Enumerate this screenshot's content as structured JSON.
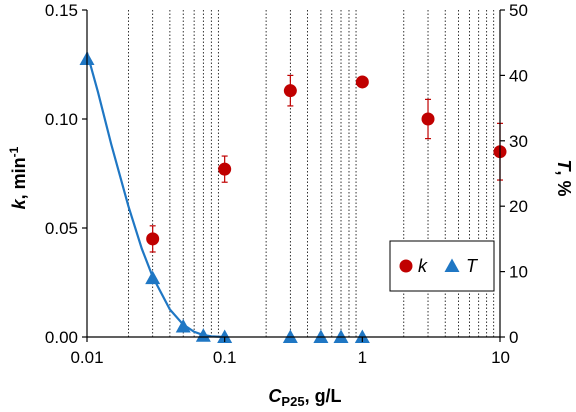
{
  "chart_data": {
    "type": "scatter",
    "x_scale": "log",
    "xlim": [
      0.01,
      10
    ],
    "y_left_lim": [
      0,
      0.15
    ],
    "y_right_lim": [
      0,
      50
    ],
    "x_ticks": [
      {
        "value": 0.01,
        "label": "0.01"
      },
      {
        "value": 0.1,
        "label": "0.1"
      },
      {
        "value": 1,
        "label": "1"
      },
      {
        "value": 10,
        "label": "10"
      }
    ],
    "y_left_ticks": [
      {
        "value": 0,
        "label": "0.00"
      },
      {
        "value": 0.05,
        "label": "0.05"
      },
      {
        "value": 0.1,
        "label": "0.10"
      },
      {
        "value": 0.15,
        "label": "0.15"
      }
    ],
    "y_right_ticks": [
      {
        "value": 0,
        "label": "0"
      },
      {
        "value": 10,
        "label": "10"
      },
      {
        "value": 20,
        "label": "20"
      },
      {
        "value": 30,
        "label": "30"
      },
      {
        "value": 40,
        "label": "40"
      },
      {
        "value": 50,
        "label": "50"
      }
    ],
    "x_label": {
      "main": "C",
      "sub": "P25",
      "rest": ", g/L"
    },
    "y_left_label": {
      "main": "k",
      "rest": ", min",
      "sup": "-1"
    },
    "y_right_label": {
      "main": "T",
      "rest": ", %"
    },
    "grid": "vertical-minor-dotted",
    "legend_placement": "lower-right",
    "series": [
      {
        "name": "k",
        "axis": "left",
        "marker": "circle",
        "color": "#c00000",
        "points": [
          {
            "x": 0.03,
            "y": 0.045,
            "err": 0.006
          },
          {
            "x": 0.1,
            "y": 0.077,
            "err": 0.006
          },
          {
            "x": 0.3,
            "y": 0.113,
            "err": 0.007
          },
          {
            "x": 1,
            "y": 0.117,
            "err": 0
          },
          {
            "x": 3,
            "y": 0.1,
            "err": 0.009
          },
          {
            "x": 10,
            "y": 0.085,
            "err": 0.013
          }
        ]
      },
      {
        "name": "T",
        "axis": "right",
        "marker": "triangle",
        "color": "#1f77c4",
        "points": [
          {
            "x": 0.01,
            "y": 42.5
          },
          {
            "x": 0.03,
            "y": 9.0
          },
          {
            "x": 0.05,
            "y": 1.6
          },
          {
            "x": 0.07,
            "y": 0.2
          },
          {
            "x": 0.1,
            "y": 0
          },
          {
            "x": 0.3,
            "y": 0
          },
          {
            "x": 0.5,
            "y": 0
          },
          {
            "x": 0.7,
            "y": 0
          },
          {
            "x": 1,
            "y": 0
          }
        ],
        "fit_curve": [
          {
            "x": 0.01,
            "y": 43.5
          },
          {
            "x": 0.012,
            "y": 37.5
          },
          {
            "x": 0.015,
            "y": 29.5
          },
          {
            "x": 0.02,
            "y": 20.0
          },
          {
            "x": 0.025,
            "y": 13.5
          },
          {
            "x": 0.03,
            "y": 9.2
          },
          {
            "x": 0.04,
            "y": 4.2
          },
          {
            "x": 0.05,
            "y": 1.9
          },
          {
            "x": 0.06,
            "y": 0.8
          },
          {
            "x": 0.07,
            "y": 0.3
          },
          {
            "x": 0.08,
            "y": 0.1
          },
          {
            "x": 0.1,
            "y": 0
          }
        ]
      }
    ]
  }
}
